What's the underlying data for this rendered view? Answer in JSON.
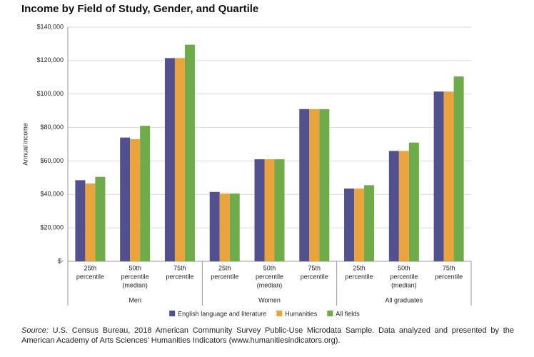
{
  "chart_data": {
    "type": "bar",
    "title": "Income by Field of Study, Gender, and Quartile",
    "y_label": "Annual income",
    "categories": [
      [
        "25th",
        "percentile"
      ],
      [
        "50th",
        "percentile",
        "(median)"
      ],
      [
        "75th",
        "percentile"
      ],
      [
        "25th",
        "percentile"
      ],
      [
        "50th",
        "percentile",
        "(median)"
      ],
      [
        "75th",
        "percentile"
      ],
      [
        "25th",
        "percentile"
      ],
      [
        "50th",
        "percentile",
        "(median)"
      ],
      [
        "75th",
        "percentile"
      ]
    ],
    "groups": [
      "Men",
      "Women",
      "All graduates"
    ],
    "series": [
      {
        "name": "English language and literature",
        "color": "#53508f",
        "values": [
          48500,
          74000,
          121500,
          41500,
          61000,
          91000,
          43500,
          66000,
          101500
        ]
      },
      {
        "name": "Humanities",
        "color": "#e9a43d",
        "values": [
          46500,
          73000,
          121500,
          40500,
          61000,
          91000,
          43500,
          66000,
          101500
        ]
      },
      {
        "name": "All fields",
        "color": "#6faa4b",
        "values": [
          50500,
          81000,
          129500,
          40500,
          61000,
          91000,
          45500,
          71000,
          110500
        ]
      }
    ],
    "ylim": [
      0,
      140000
    ],
    "yticks": [
      {
        "value": 0,
        "label": "$-"
      },
      {
        "value": 20000,
        "label": "$20,000"
      },
      {
        "value": 40000,
        "label": "$40,000"
      },
      {
        "value": 60000,
        "label": "$60,000"
      },
      {
        "value": 80000,
        "label": "$80,000"
      },
      {
        "value": 100000,
        "label": "$100,000"
      },
      {
        "value": 120000,
        "label": "$120,000"
      },
      {
        "value": 140000,
        "label": "$140,000"
      }
    ],
    "grid": true,
    "source_label": "Source:",
    "source": "U.S. Census Bureau, 2018 American Community Survey Public-Use Microdata Sample. Data analyzed and presented by the American Academy of Arts Sciences’ Humanities Indicators (www.humanitiesindicators.org)."
  }
}
